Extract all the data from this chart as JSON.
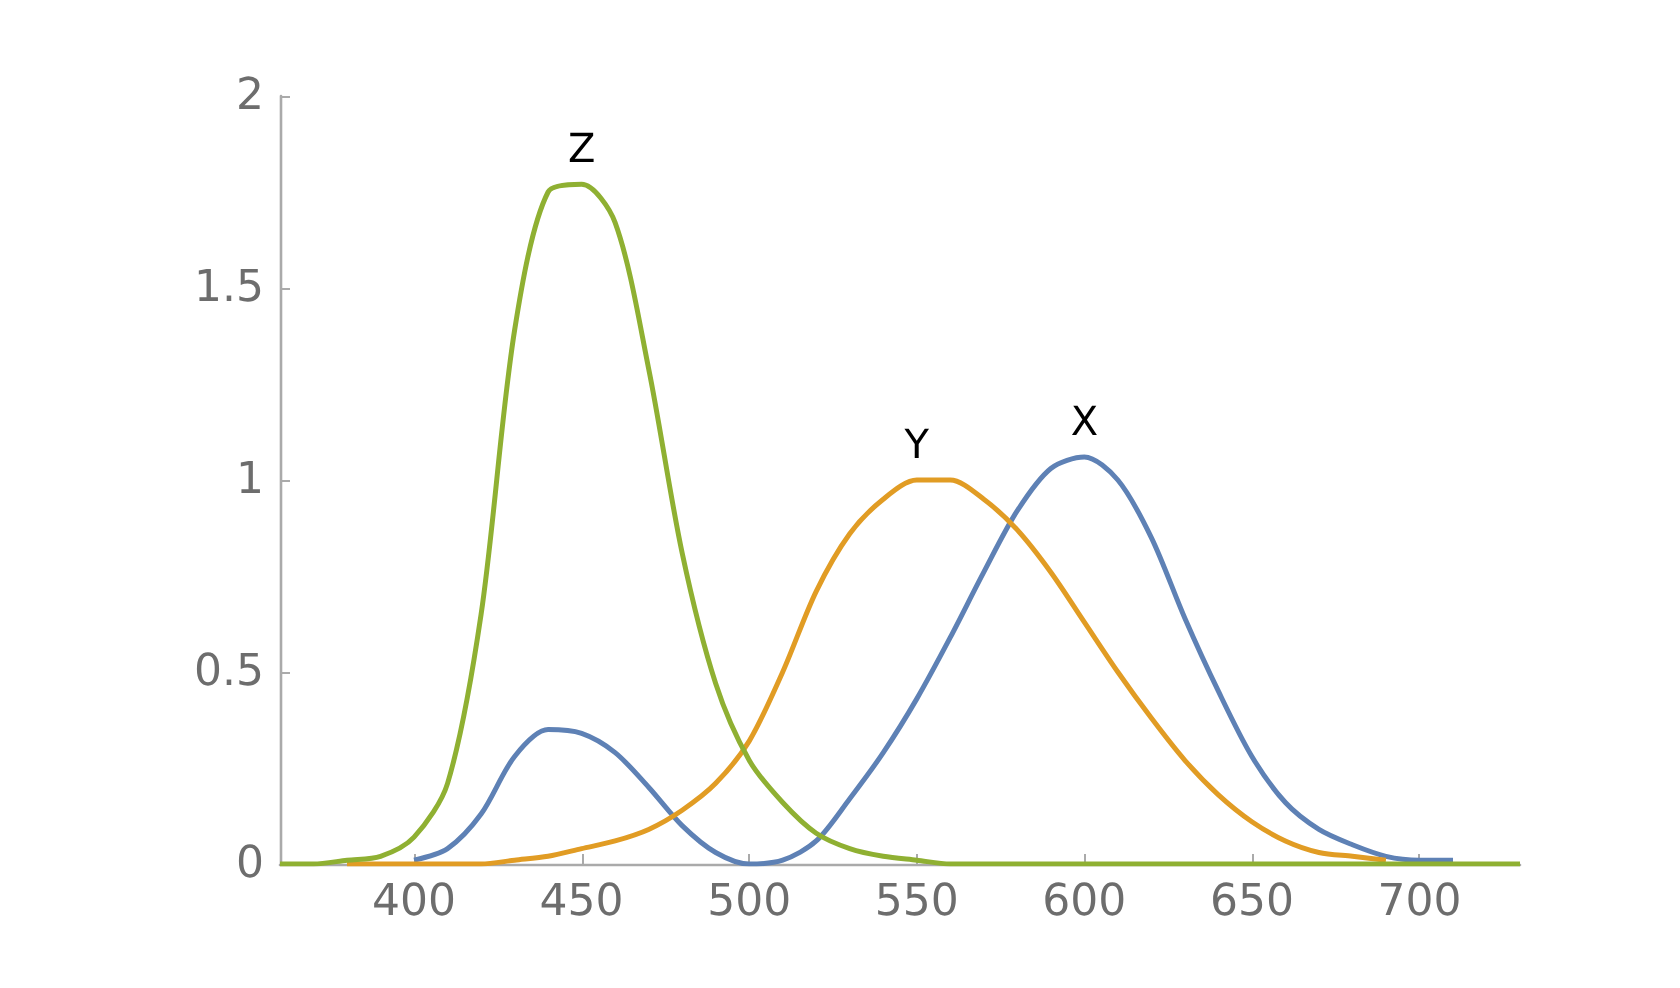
{
  "chart_data": {
    "type": "line",
    "x": [
      360,
      370,
      380,
      390,
      400,
      410,
      420,
      430,
      440,
      450,
      460,
      470,
      480,
      490,
      500,
      510,
      520,
      530,
      540,
      550,
      560,
      570,
      580,
      590,
      600,
      610,
      620,
      630,
      640,
      650,
      660,
      670,
      680,
      690,
      700,
      710,
      720,
      730
    ],
    "series": [
      {
        "name": "X",
        "color": "#5e81b5",
        "values": [
          null,
          null,
          null,
          null,
          0.01,
          0.04,
          0.13,
          0.28,
          0.35,
          0.34,
          0.29,
          0.2,
          0.1,
          0.03,
          0,
          0.01,
          0.06,
          0.17,
          0.29,
          0.43,
          0.59,
          0.76,
          0.92,
          1.03,
          1.06,
          1,
          0.85,
          0.64,
          0.45,
          0.28,
          0.16,
          0.09,
          0.05,
          0.02,
          0.01,
          0.01,
          null,
          null
        ]
      },
      {
        "name": "Y",
        "color": "#e19c24",
        "values": [
          null,
          null,
          0,
          0,
          0,
          0,
          0,
          0.01,
          0.02,
          0.04,
          0.06,
          0.09,
          0.14,
          0.21,
          0.32,
          0.5,
          0.71,
          0.86,
          0.95,
          1,
          1,
          0.95,
          0.87,
          0.76,
          0.63,
          0.5,
          0.38,
          0.27,
          0.18,
          0.11,
          0.06,
          0.03,
          0.02,
          0.01,
          null,
          null,
          null,
          null
        ]
      },
      {
        "name": "Z",
        "color": "#8fb032",
        "values": [
          0,
          0,
          0.01,
          0.02,
          0.07,
          0.21,
          0.65,
          1.39,
          1.75,
          1.77,
          1.67,
          1.29,
          0.81,
          0.47,
          0.27,
          0.16,
          0.08,
          0.04,
          0.02,
          0.01,
          0,
          0,
          0,
          0,
          0,
          0,
          0,
          0,
          0,
          0,
          0,
          0,
          0,
          0,
          0,
          0,
          0,
          0
        ]
      }
    ],
    "xlim": [
      360,
      730
    ],
    "xticks": [
      400,
      450,
      500,
      550,
      600,
      650,
      700
    ],
    "ylim": [
      0,
      2
    ],
    "yticks": [
      0,
      0.5,
      1,
      1.5,
      2
    ],
    "grid": false,
    "legend": false,
    "marker": "none",
    "line_style": "solid"
  }
}
